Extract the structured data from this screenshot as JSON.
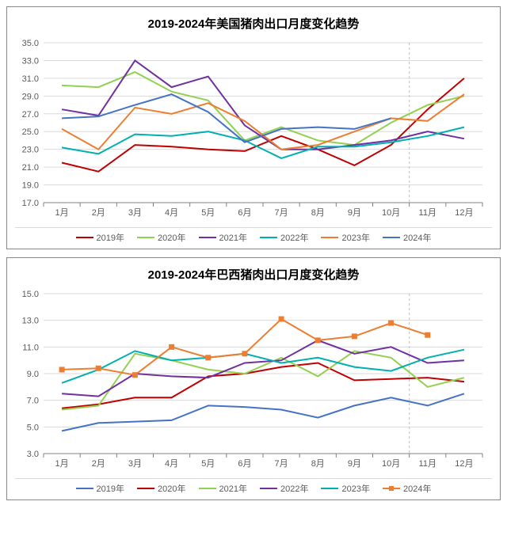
{
  "charts": [
    {
      "id": "us",
      "title": "2019-2024年美国猪肉出口月度变化趋势",
      "type": "line",
      "title_fontsize": 15,
      "label_fontsize": 11,
      "background_color": "#ffffff",
      "grid_color": "#d9d9d9",
      "text_color": "#595959",
      "xlabels": [
        "1月",
        "2月",
        "3月",
        "4月",
        "5月",
        "6月",
        "7月",
        "8月",
        "9月",
        "10月",
        "11月",
        "12月"
      ],
      "ylim": [
        17.0,
        35.0
      ],
      "ytick_step": 2.0,
      "dashed_vline_after_index": 9,
      "marker_style": "none",
      "line_width": 2,
      "series": [
        {
          "name": "2019年",
          "color": "#c00000",
          "values": [
            21.5,
            20.5,
            23.5,
            23.3,
            23.0,
            22.8,
            24.5,
            23.0,
            21.2,
            23.5,
            27.5,
            31.0
          ]
        },
        {
          "name": "2020年",
          "color": "#92d050",
          "values": [
            30.2,
            30.0,
            31.7,
            29.5,
            28.5,
            24.0,
            25.5,
            24.0,
            23.5,
            26.0,
            28.0,
            29.0
          ]
        },
        {
          "name": "2021年",
          "color": "#7030a0",
          "values": [
            27.5,
            26.8,
            33.0,
            30.0,
            31.2,
            25.7,
            23.0,
            23.0,
            23.5,
            24.0,
            25.0,
            24.2
          ]
        },
        {
          "name": "2022年",
          "color": "#00b0b0",
          "values": [
            23.2,
            22.5,
            24.7,
            24.5,
            25.0,
            24.0,
            22.0,
            23.3,
            23.3,
            23.8,
            24.5,
            25.5
          ]
        },
        {
          "name": "2023年",
          "color": "#ed7d31",
          "values": [
            25.3,
            23.0,
            27.7,
            27.0,
            28.2,
            26.2,
            23.0,
            23.5,
            25.0,
            26.5,
            26.2,
            29.2
          ]
        },
        {
          "name": "2024年",
          "color": "#4472c4",
          "values": [
            26.5,
            26.7,
            28.0,
            29.2,
            27.2,
            23.8,
            25.3,
            25.5,
            25.3,
            26.5,
            null,
            null
          ]
        }
      ]
    },
    {
      "id": "br",
      "title": "2019-2024年巴西猪肉出口月度变化趋势",
      "type": "line",
      "title_fontsize": 15,
      "label_fontsize": 11,
      "background_color": "#ffffff",
      "grid_color": "#d9d9d9",
      "text_color": "#595959",
      "xlabels": [
        "1月",
        "2月",
        "3月",
        "4月",
        "5月",
        "6月",
        "7月",
        "8月",
        "9月",
        "10月",
        "11月",
        "12月"
      ],
      "ylim": [
        3.0,
        15.0
      ],
      "ytick_step": 2.0,
      "dashed_vline_after_index": 9,
      "marker_style": "none",
      "line_width": 2,
      "series": [
        {
          "name": "2019年",
          "color": "#4472c4",
          "values": [
            4.7,
            5.3,
            5.4,
            5.5,
            6.6,
            6.5,
            6.3,
            5.7,
            6.6,
            7.2,
            6.6,
            7.5
          ]
        },
        {
          "name": "2020年",
          "color": "#c00000",
          "values": [
            6.4,
            6.7,
            7.2,
            7.2,
            8.8,
            9.0,
            9.5,
            9.8,
            8.5,
            8.6,
            8.7,
            8.4
          ]
        },
        {
          "name": "2021年",
          "color": "#92d050",
          "values": [
            6.3,
            6.6,
            10.5,
            10.0,
            9.3,
            9.0,
            10.2,
            8.8,
            10.7,
            10.2,
            8.0,
            8.7
          ]
        },
        {
          "name": "2022年",
          "color": "#7030a0",
          "values": [
            7.5,
            7.3,
            9.0,
            8.8,
            8.7,
            9.8,
            10.0,
            11.5,
            10.5,
            11.0,
            9.8,
            10.0
          ]
        },
        {
          "name": "2023年",
          "color": "#00b0b0",
          "values": [
            8.3,
            9.3,
            10.7,
            10.0,
            10.2,
            10.5,
            9.8,
            10.2,
            9.5,
            9.2,
            10.2,
            10.8
          ]
        },
        {
          "name": "2024年",
          "color": "#ed7d31",
          "marker": "square",
          "values": [
            9.3,
            9.4,
            8.9,
            11.0,
            10.2,
            10.5,
            13.1,
            11.5,
            11.8,
            12.8,
            11.9,
            null
          ]
        }
      ]
    }
  ]
}
